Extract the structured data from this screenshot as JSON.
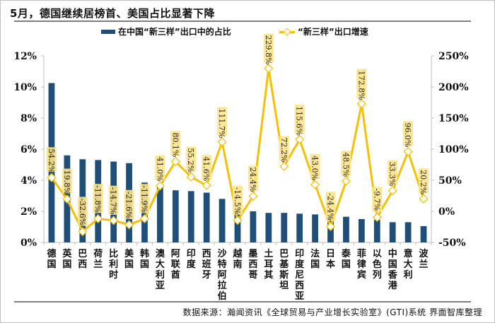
{
  "title": "5月，德国继续居榜首、美国占比显著下降",
  "source": "数据来源：瀚闻资讯《全球贸易与产业增长实验室》(GTI)系统  界面智库整理",
  "colors": {
    "bar": "#1f4e79",
    "line": "#f5c000",
    "label_bg": "#fde38a",
    "axis": "#bfbfbf"
  },
  "chart_data": {
    "type": "bar+line",
    "title": "5月，德国继续居榜首、美国占比显著下降",
    "legend_position": "top",
    "categories": [
      "德国",
      "英国",
      "巴西",
      "荷兰",
      "比利时",
      "美国",
      "韩国",
      "澳大利亚",
      "阿联酋",
      "印度",
      "西班牙",
      "沙特阿拉伯",
      "越南",
      "墨西哥",
      "土耳其",
      "巴基斯坦",
      "印度尼西亚",
      "法国",
      "日本",
      "泰国",
      "菲律宾",
      "以色列",
      "中国香港",
      "意大利",
      "波兰"
    ],
    "series": [
      {
        "name": "在中国“新三样”出口中的占比",
        "type": "bar",
        "axis": "left",
        "values": [
          10.25,
          5.6,
          5.35,
          5.3,
          5.2,
          5.1,
          3.85,
          3.7,
          3.35,
          3.3,
          3.2,
          2.8,
          2.1,
          2.0,
          1.9,
          1.9,
          1.85,
          1.8,
          1.7,
          1.65,
          1.5,
          1.45,
          1.3,
          1.3,
          1.05
        ]
      },
      {
        "name": "“新三样”出口增速",
        "type": "line",
        "axis": "right",
        "values": [
          54.2,
          19.8,
          -32.6,
          -11.8,
          -14.7,
          -21.6,
          -11.9,
          41.0,
          80.1,
          55.2,
          41.6,
          111.7,
          -14.5,
          24.4,
          229.8,
          72.2,
          115.6,
          43.0,
          -24.4,
          48.5,
          172.8,
          -9.7,
          33.3,
          96.0,
          20.2
        ],
        "labels": [
          "54.2%",
          "19.8%",
          "-32.6%",
          "-11.8%",
          "-14.7%",
          "-21.6%",
          "-11.9%",
          "41.0%",
          "80.1%",
          "55.2%",
          "41.6%",
          "111.7%",
          "-14.5%",
          "24.4%",
          "229.8%",
          "72.2%",
          "115.6%",
          "43.0%",
          "-24.4%",
          "48.5%",
          "172.8%",
          "-9.7%",
          "33.3%",
          "96.0%",
          "20.2%"
        ]
      }
    ],
    "left_axis": {
      "ylim": [
        0,
        12
      ],
      "ticks": [
        "0%",
        "2%",
        "4%",
        "6%",
        "8%",
        "10%",
        "12%"
      ],
      "tick_values": [
        0,
        2,
        4,
        6,
        8,
        10,
        12
      ]
    },
    "right_axis": {
      "ylim": [
        -50,
        250
      ],
      "ticks": [
        "-50%",
        "0%",
        "50%",
        "100%",
        "150%",
        "200%",
        "250%"
      ],
      "tick_values": [
        -50,
        0,
        50,
        100,
        150,
        200,
        250
      ]
    },
    "grid": false
  }
}
